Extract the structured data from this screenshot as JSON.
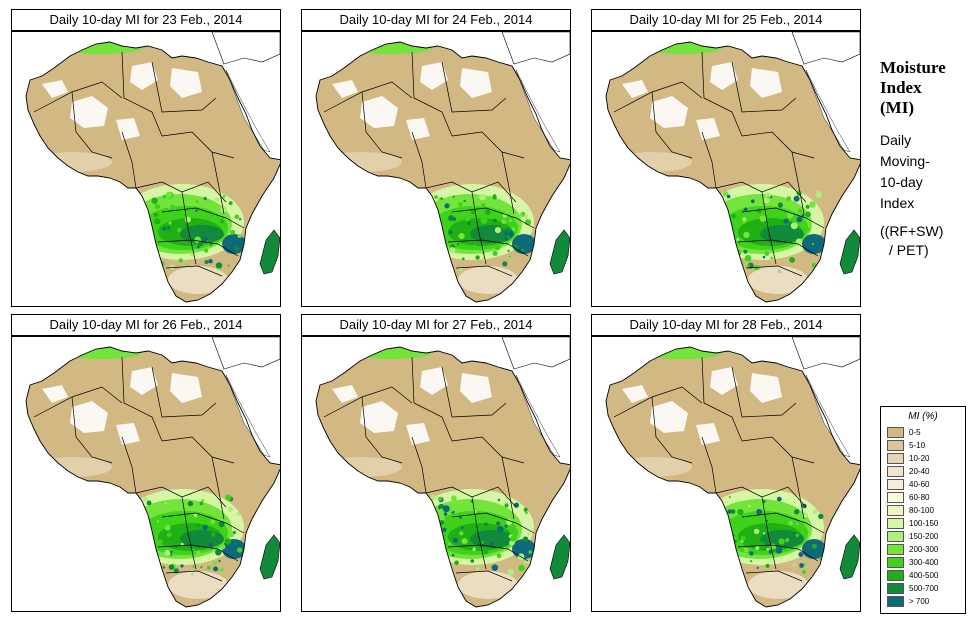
{
  "panels": [
    {
      "title": "Daily 10-day MI for  23 Feb., 2014"
    },
    {
      "title": "Daily 10-day MI for  24 Feb., 2014"
    },
    {
      "title": "Daily 10-day MI for  25 Feb., 2014"
    },
    {
      "title": "Daily 10-day MI for  26 Feb., 2014"
    },
    {
      "title": "Daily 10-day MI for  27 Feb., 2014"
    },
    {
      "title": "Daily 10-day MI for  28 Feb., 2014"
    }
  ],
  "side": {
    "title_line1": "Moisture",
    "title_line2": "Index",
    "title_line3": "(MI)",
    "desc_line1": "Daily",
    "desc_line2": "Moving-",
    "desc_line3": "10-day",
    "desc_line4": "Index",
    "formula_line1": "((RF+SW)",
    "formula_line2": "/ PET)"
  },
  "legend": {
    "title": "MI (%)",
    "items": [
      {
        "label": "0-5",
        "color": "#d2b883"
      },
      {
        "label": "5-10",
        "color": "#dcc597"
      },
      {
        "label": "10-20",
        "color": "#e6d6b4"
      },
      {
        "label": "20-40",
        "color": "#efe4cd"
      },
      {
        "label": "40-60",
        "color": "#f5eddc"
      },
      {
        "label": "60-80",
        "color": "#f8fbd4"
      },
      {
        "label": "80-100",
        "color": "#ecf8c0"
      },
      {
        "label": "100-150",
        "color": "#d6f6a6"
      },
      {
        "label": "150-200",
        "color": "#aef07a"
      },
      {
        "label": "200-300",
        "color": "#72e43c"
      },
      {
        "label": "300-400",
        "color": "#3ed21a"
      },
      {
        "label": "400-500",
        "color": "#1fb016"
      },
      {
        "label": "500-700",
        "color": "#128a3c"
      },
      {
        "label": "> 700",
        "color": "#0e6a7a"
      }
    ]
  }
}
